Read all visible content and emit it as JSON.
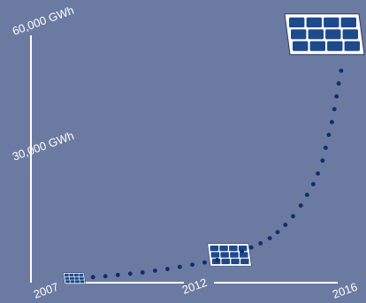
{
  "colors": {
    "background": "#6b7aa1",
    "axis": "#ffffff",
    "dots": "#0d2d6e",
    "panel_fill": "#1e4a8c",
    "panel_frame": "#ffffff"
  },
  "chart_data": {
    "type": "scatter",
    "title": "",
    "xlabel": "",
    "ylabel": "",
    "y_ticks": [
      {
        "value": 30000,
        "label": "30,000 GWh"
      },
      {
        "value": 60000,
        "label": "60,000 GWh"
      }
    ],
    "x_ticks": [
      {
        "value": 2007,
        "label": "2007"
      },
      {
        "value": 2012,
        "label": "2012"
      },
      {
        "value": 2016,
        "label": "2016"
      }
    ],
    "xlim": [
      2005.6,
      2016.4
    ],
    "ylim": [
      0,
      66000
    ],
    "icons": [
      {
        "name": "solar-panel-icon-small",
        "x": 2007,
        "y": 1000,
        "scale": 0.28
      },
      {
        "name": "solar-panel-icon-medium",
        "x": 2012,
        "y": 6500,
        "scale": 0.55
      },
      {
        "name": "solar-panel-icon-large",
        "x": 2016,
        "y": 58000,
        "scale": 1.0
      }
    ],
    "series": [
      {
        "x": [
          2007.6,
          2008.0,
          2008.4,
          2008.8,
          2009.2,
          2009.6,
          2010.0,
          2010.4,
          2010.8,
          2011.2,
          2011.6,
          2012.4,
          2012.7,
          2013.0,
          2013.3,
          2013.55,
          2013.8,
          2014.05,
          2014.3,
          2014.5,
          2014.7,
          2014.85,
          2015.0,
          2015.1,
          2015.2,
          2015.3,
          2015.38,
          2015.45,
          2015.52,
          2015.6
        ],
        "y": [
          1300,
          1500,
          1800,
          2100,
          2400,
          2800,
          3200,
          3700,
          4200,
          4700,
          5300,
          7300,
          8200,
          9200,
          10400,
          11800,
          13500,
          15500,
          18000,
          20500,
          23000,
          25500,
          28500,
          31500,
          34500,
          37500,
          40500,
          43500,
          46500,
          49500
        ]
      }
    ]
  }
}
